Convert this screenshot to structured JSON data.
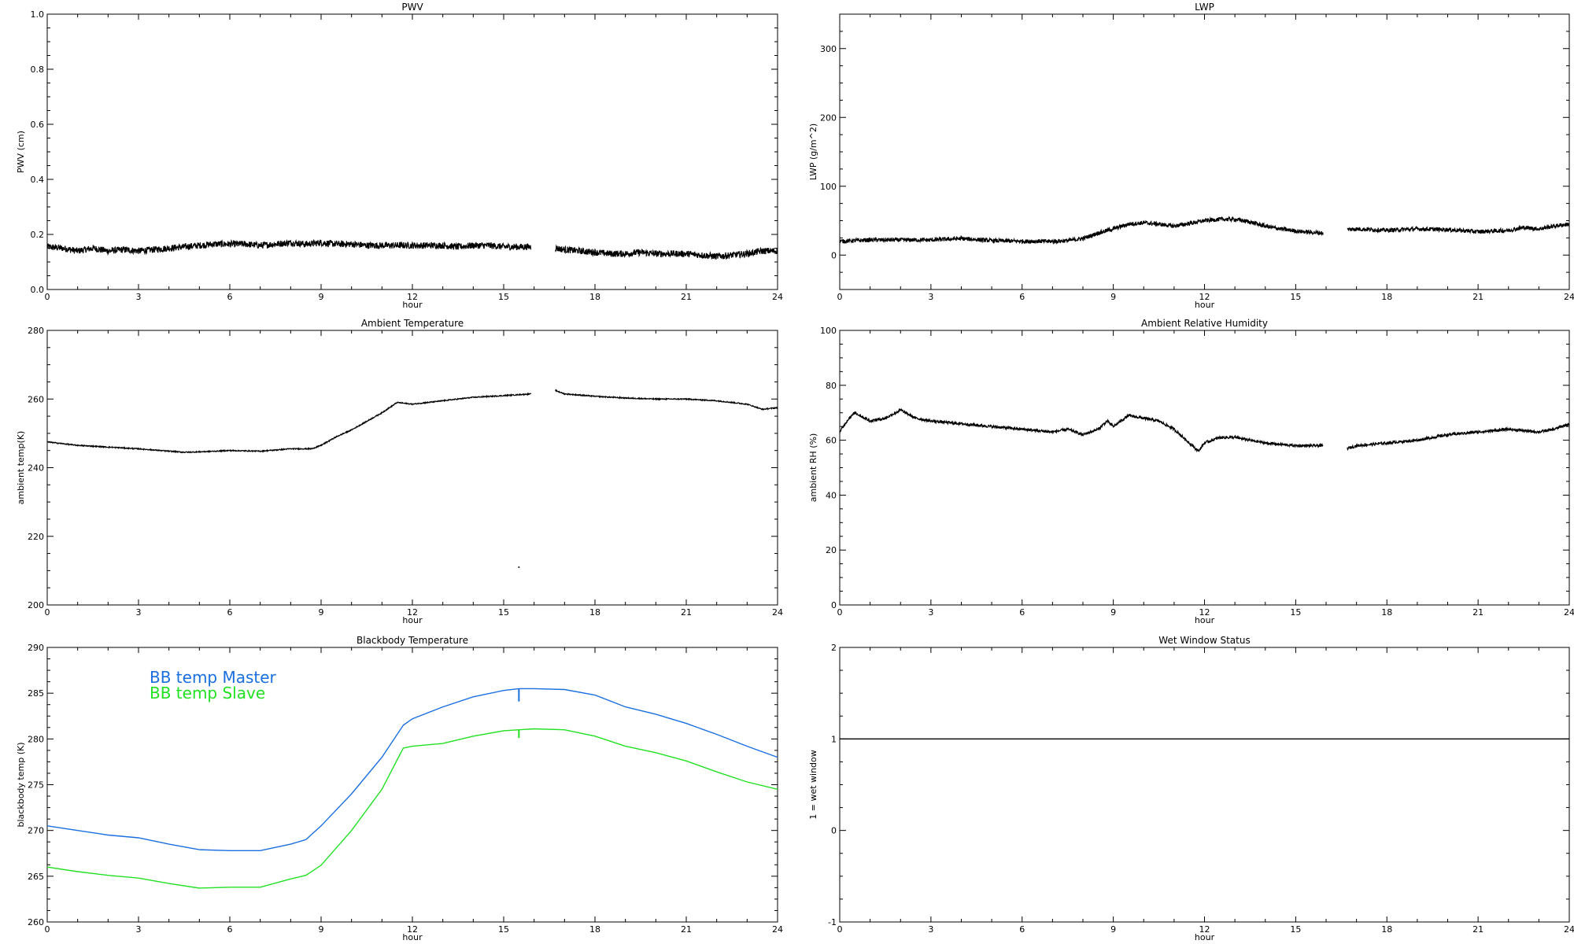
{
  "chart_data": [
    {
      "type": "line",
      "title": "PWV",
      "xlabel": "hour",
      "ylabel": "PWV (cm)",
      "xlim": [
        0,
        24
      ],
      "ylim": [
        0,
        1
      ],
      "xticks": [
        0,
        3,
        6,
        9,
        12,
        15,
        18,
        21,
        24
      ],
      "yticks": [
        0.0,
        0.2,
        0.4,
        0.6,
        0.8,
        1.0
      ],
      "ytick_labels": [
        "0.0",
        "0.2",
        "0.4",
        "0.6",
        "0.8",
        "1.0"
      ],
      "noise": 0.012,
      "color": "#000000",
      "series": [
        {
          "x": [
            0,
            0.5,
            1,
            1.5,
            2,
            2.5,
            3,
            3.5,
            4,
            4.5,
            5,
            5.5,
            6,
            6.5,
            7,
            7.5,
            8,
            8.5,
            9,
            9.5,
            10,
            10.5,
            11,
            11.5,
            12,
            12.5,
            13,
            13.5,
            14,
            14.5,
            15,
            15.5,
            15.9
          ],
          "y": [
            0.155,
            0.15,
            0.14,
            0.15,
            0.14,
            0.145,
            0.14,
            0.145,
            0.15,
            0.155,
            0.16,
            0.165,
            0.165,
            0.165,
            0.16,
            0.165,
            0.17,
            0.165,
            0.17,
            0.165,
            0.165,
            0.16,
            0.16,
            0.16,
            0.16,
            0.16,
            0.16,
            0.155,
            0.16,
            0.16,
            0.155,
            0.155,
            0.155
          ]
        },
        {
          "x": [
            16.7,
            17,
            17.5,
            18,
            18.5,
            19,
            19.5,
            20,
            20.5,
            21,
            21.5,
            22,
            22.5,
            23,
            23.5,
            24
          ],
          "y": [
            0.15,
            0.145,
            0.14,
            0.135,
            0.13,
            0.13,
            0.135,
            0.13,
            0.13,
            0.13,
            0.125,
            0.12,
            0.125,
            0.13,
            0.14,
            0.14
          ]
        }
      ]
    },
    {
      "type": "line",
      "title": "LWP",
      "xlabel": "hour",
      "ylabel": "LWP (g/m^2)",
      "xlim": [
        0,
        24
      ],
      "ylim": [
        -50,
        350
      ],
      "xticks": [
        0,
        3,
        6,
        9,
        12,
        15,
        18,
        21,
        24
      ],
      "yticks": [
        0,
        100,
        200,
        300
      ],
      "ytick_labels": [
        "0",
        "100",
        "200",
        "300"
      ],
      "noise": 3,
      "color": "#000000",
      "series": [
        {
          "x": [
            0,
            1,
            2,
            3,
            4,
            5,
            6,
            7,
            7.5,
            8,
            8.5,
            9,
            9.5,
            10,
            10.5,
            11,
            11.5,
            12,
            12.5,
            13,
            13.5,
            14,
            14.5,
            15,
            15.5,
            15.9
          ],
          "y": [
            20,
            22,
            22,
            22,
            24,
            21,
            20,
            20,
            21,
            24,
            32,
            38,
            45,
            47,
            45,
            42,
            46,
            50,
            52,
            52,
            48,
            42,
            38,
            35,
            33,
            32
          ]
        },
        {
          "x": [
            16.7,
            17,
            18,
            19,
            20,
            21,
            22,
            22.5,
            23,
            23.5,
            24
          ],
          "y": [
            37,
            38,
            36,
            38,
            37,
            34,
            36,
            40,
            38,
            42,
            45
          ]
        }
      ]
    },
    {
      "type": "line",
      "title": "Ambient Temperature",
      "xlabel": "hour",
      "ylabel": "ambient temp(K)",
      "xlim": [
        0,
        24
      ],
      "ylim": [
        200,
        280
      ],
      "xticks": [
        0,
        3,
        6,
        9,
        12,
        15,
        18,
        21,
        24
      ],
      "yticks": [
        200,
        220,
        240,
        260,
        280
      ],
      "ytick_labels": [
        "200",
        "220",
        "240",
        "260",
        "280"
      ],
      "noise": 0.15,
      "color": "#000000",
      "series": [
        {
          "x": [
            0,
            1,
            2,
            3,
            4,
            4.5,
            5,
            6,
            7,
            8,
            8.7,
            9,
            9.5,
            10,
            10.5,
            11,
            11.5,
            12,
            13,
            14,
            15,
            15.9
          ],
          "y": [
            247.5,
            246.5,
            246,
            245.5,
            244.8,
            244.5,
            244.6,
            245,
            244.8,
            245.5,
            245.5,
            246.5,
            249,
            251,
            253.5,
            256,
            259,
            258.5,
            259.5,
            260.5,
            261,
            261.5
          ]
        },
        {
          "x": [
            16.7,
            17,
            18,
            19,
            20,
            21,
            22,
            23,
            23.5,
            24
          ],
          "y": [
            262.5,
            261.5,
            260.8,
            260.3,
            260,
            260,
            259.5,
            258.5,
            257,
            257.5
          ]
        },
        {
          "x": [
            15.5
          ],
          "y": [
            211
          ]
        }
      ]
    },
    {
      "type": "line",
      "title": "Ambient Relative Humidity",
      "xlabel": "hour",
      "ylabel": "ambient RH (%)",
      "xlim": [
        0,
        24
      ],
      "ylim": [
        0,
        100
      ],
      "xticks": [
        0,
        3,
        6,
        9,
        12,
        15,
        18,
        21,
        24
      ],
      "yticks": [
        0,
        20,
        40,
        60,
        80,
        100
      ],
      "ytick_labels": [
        "0",
        "20",
        "40",
        "60",
        "80",
        "100"
      ],
      "noise": 0.5,
      "color": "#000000",
      "series": [
        {
          "x": [
            0,
            0.3,
            0.5,
            1,
            1.5,
            2,
            2.5,
            3,
            4,
            5,
            6,
            7,
            7.5,
            8,
            8.5,
            8.8,
            9,
            9.5,
            10,
            10.5,
            11,
            11.5,
            11.8,
            12,
            12.5,
            13,
            14,
            15,
            15.9
          ],
          "y": [
            63,
            68,
            70,
            67,
            68,
            71,
            68,
            67,
            66,
            65,
            64,
            63,
            64,
            62,
            64,
            67,
            65,
            69,
            68,
            67,
            64,
            59,
            56,
            59,
            61,
            61,
            59,
            58,
            58
          ]
        },
        {
          "x": [
            16.7,
            17,
            18,
            19,
            20,
            21,
            22,
            23,
            23.5,
            24
          ],
          "y": [
            57,
            58,
            59,
            60,
            62,
            63,
            64,
            63,
            64,
            66
          ]
        }
      ]
    },
    {
      "type": "line",
      "title": "Blackbody Temperature",
      "xlabel": "hour",
      "ylabel": "blackbody temp (K)",
      "xlim": [
        0,
        24
      ],
      "ylim": [
        260,
        290
      ],
      "xticks": [
        0,
        3,
        6,
        9,
        12,
        15,
        18,
        21,
        24
      ],
      "yticks": [
        260,
        265,
        270,
        275,
        280,
        285,
        290
      ],
      "ytick_labels": [
        "260",
        "265",
        "270",
        "275",
        "280",
        "285",
        "290"
      ],
      "noise": 0,
      "series": [
        {
          "name": "BB temp Master",
          "color": "#1a6fe0",
          "x": [
            0,
            1,
            2,
            3,
            4,
            5,
            6,
            7,
            8,
            8.5,
            9,
            10,
            11,
            11.7,
            12,
            13,
            14,
            15,
            15.5,
            16,
            17,
            18,
            19,
            20,
            21,
            22,
            23,
            24
          ],
          "y": [
            270.5,
            270,
            269.5,
            269.2,
            268.5,
            267.9,
            267.8,
            267.8,
            268.5,
            269,
            270.5,
            274,
            278,
            281.5,
            282.2,
            283.5,
            284.6,
            285.3,
            285.5,
            285.5,
            285.4,
            284.8,
            283.5,
            282.7,
            281.7,
            280.5,
            279.2,
            278
          ]
        },
        {
          "name": "BB temp Slave",
          "color": "#22e022",
          "x": [
            0,
            1,
            2,
            3,
            4,
            5,
            6,
            7,
            8,
            8.5,
            9,
            10,
            11,
            11.7,
            12,
            13,
            14,
            15,
            15.5,
            16,
            17,
            18,
            19,
            20,
            21,
            22,
            23,
            24
          ],
          "y": [
            266,
            265.5,
            265.1,
            264.8,
            264.2,
            263.7,
            263.8,
            263.8,
            264.7,
            265.1,
            266.2,
            270,
            274.5,
            279,
            279.2,
            279.5,
            280.3,
            280.9,
            281,
            281.1,
            281,
            280.3,
            279.2,
            278.5,
            277.6,
            276.4,
            275.3,
            274.5
          ]
        }
      ]
    },
    {
      "type": "line",
      "title": "Wet Window Status",
      "xlabel": "hour",
      "ylabel": "1 = wet window",
      "xlim": [
        0,
        24
      ],
      "ylim": [
        -1,
        2
      ],
      "xticks": [
        0,
        3,
        6,
        9,
        12,
        15,
        18,
        21,
        24
      ],
      "yticks": [
        -1,
        0,
        1,
        2
      ],
      "ytick_labels": [
        "-1",
        "0",
        "1",
        "2"
      ],
      "noise": 0,
      "color": "#000000",
      "series": [
        {
          "x": [
            0,
            24
          ],
          "y": [
            1,
            1
          ]
        }
      ]
    }
  ]
}
